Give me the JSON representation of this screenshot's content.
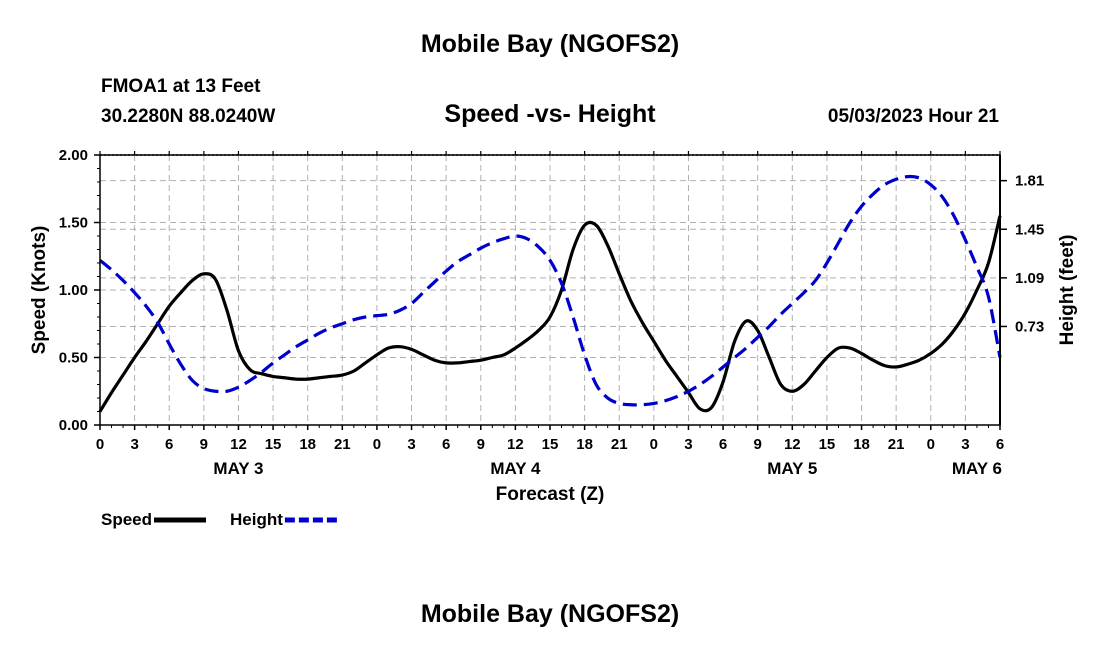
{
  "page": {
    "title": "Mobile Bay (NGOFS2)",
    "bottom_title": "Mobile Bay (NGOFS2)",
    "station": "FMOA1 at 13 Feet",
    "coords": "30.2280N  88.0240W",
    "subtitle": "Speed -vs- Height",
    "datetime": "05/03/2023 Hour 21"
  },
  "chart_data": {
    "type": "line",
    "title": "Speed -vs- Height",
    "xlabel": "Forecast (Z)",
    "ylabel": "Speed (Knots)",
    "y2label": "Height (feet)",
    "xlim": [
      0,
      78
    ],
    "ylim": [
      0,
      2.0
    ],
    "y2lim": [
      0,
      2.0
    ],
    "x_ticks": [
      0,
      3,
      6,
      9,
      12,
      15,
      18,
      21,
      24,
      27,
      30,
      33,
      36,
      39,
      42,
      45,
      48,
      51,
      54,
      57,
      60,
      63,
      66,
      69,
      72,
      75,
      78
    ],
    "x_tick_labels": [
      "0",
      "3",
      "6",
      "9",
      "12",
      "15",
      "18",
      "21",
      "0",
      "3",
      "6",
      "9",
      "12",
      "15",
      "18",
      "21",
      "0",
      "3",
      "6",
      "9",
      "12",
      "15",
      "18",
      "21",
      "0",
      "3",
      "6"
    ],
    "day_labels": [
      {
        "x": 12,
        "label": "MAY 3"
      },
      {
        "x": 36,
        "label": "MAY 4"
      },
      {
        "x": 60,
        "label": "MAY 5"
      },
      {
        "x": 76,
        "label": "MAY 6"
      }
    ],
    "y_ticks": [
      0,
      0.5,
      1.0,
      1.5,
      2.0
    ],
    "y_tick_labels": [
      "0.00",
      "0.50",
      "1.00",
      "1.50",
      "2.00"
    ],
    "y2_ticks": [
      0.73,
      1.09,
      1.45,
      1.81
    ],
    "y2_tick_labels": [
      "0.73",
      "1.09",
      "1.45",
      "1.81"
    ],
    "grid": true,
    "legend": {
      "position": "bottom-left"
    },
    "series": [
      {
        "name": "Speed",
        "color": "#000000",
        "dash": "solid",
        "x": [
          0,
          1,
          2,
          3,
          4,
          5,
          6,
          7,
          8,
          9,
          10,
          11,
          12,
          13,
          14,
          15,
          16,
          17,
          18,
          19,
          20,
          21,
          22,
          23,
          24,
          25,
          26,
          27,
          28,
          29,
          30,
          31,
          32,
          33,
          34,
          35,
          36,
          37,
          38,
          39,
          40,
          41,
          42,
          43,
          44,
          45,
          46,
          47,
          48,
          49,
          50,
          51,
          52,
          53,
          54,
          55,
          56,
          57,
          58,
          59,
          60,
          61,
          62,
          63,
          64,
          65,
          66,
          67,
          68,
          69,
          70,
          71,
          72,
          73,
          74,
          75,
          76,
          77,
          78
        ],
        "values": [
          0.1,
          0.24,
          0.37,
          0.5,
          0.62,
          0.75,
          0.88,
          0.98,
          1.07,
          1.12,
          1.08,
          0.85,
          0.55,
          0.41,
          0.38,
          0.36,
          0.35,
          0.34,
          0.34,
          0.35,
          0.36,
          0.37,
          0.4,
          0.46,
          0.52,
          0.57,
          0.58,
          0.56,
          0.52,
          0.48,
          0.46,
          0.46,
          0.47,
          0.48,
          0.5,
          0.52,
          0.57,
          0.63,
          0.7,
          0.8,
          1.0,
          1.3,
          1.48,
          1.48,
          1.33,
          1.12,
          0.92,
          0.76,
          0.62,
          0.48,
          0.36,
          0.24,
          0.12,
          0.13,
          0.32,
          0.62,
          0.77,
          0.7,
          0.5,
          0.3,
          0.25,
          0.3,
          0.4,
          0.5,
          0.57,
          0.57,
          0.53,
          0.48,
          0.44,
          0.43,
          0.45,
          0.48,
          0.53,
          0.6,
          0.7,
          0.83,
          1.0,
          1.2,
          1.55
        ]
      },
      {
        "name": "Height",
        "color": "#0000cc",
        "dash": "dashed",
        "x": [
          0,
          1,
          2,
          3,
          4,
          5,
          6,
          7,
          8,
          9,
          10,
          11,
          12,
          13,
          14,
          15,
          16,
          17,
          18,
          19,
          20,
          21,
          22,
          23,
          24,
          25,
          26,
          27,
          28,
          29,
          30,
          31,
          32,
          33,
          34,
          35,
          36,
          37,
          38,
          39,
          40,
          41,
          42,
          43,
          44,
          45,
          46,
          47,
          48,
          49,
          50,
          51,
          52,
          53,
          54,
          55,
          56,
          57,
          58,
          59,
          60,
          61,
          62,
          63,
          64,
          65,
          66,
          67,
          68,
          69,
          70,
          71,
          72,
          73,
          74,
          75,
          76,
          77,
          78
        ],
        "values": [
          1.22,
          1.15,
          1.07,
          0.98,
          0.88,
          0.76,
          0.6,
          0.45,
          0.33,
          0.27,
          0.25,
          0.25,
          0.28,
          0.33,
          0.39,
          0.46,
          0.52,
          0.58,
          0.63,
          0.68,
          0.72,
          0.75,
          0.78,
          0.8,
          0.81,
          0.82,
          0.85,
          0.9,
          0.98,
          1.06,
          1.14,
          1.21,
          1.26,
          1.31,
          1.35,
          1.38,
          1.4,
          1.38,
          1.32,
          1.22,
          1.05,
          0.8,
          0.52,
          0.3,
          0.2,
          0.16,
          0.15,
          0.15,
          0.16,
          0.18,
          0.21,
          0.25,
          0.3,
          0.36,
          0.43,
          0.5,
          0.57,
          0.65,
          0.73,
          0.82,
          0.9,
          0.98,
          1.07,
          1.2,
          1.35,
          1.5,
          1.62,
          1.71,
          1.78,
          1.82,
          1.84,
          1.83,
          1.78,
          1.69,
          1.55,
          1.37,
          1.17,
          0.95,
          0.5
        ]
      }
    ]
  }
}
